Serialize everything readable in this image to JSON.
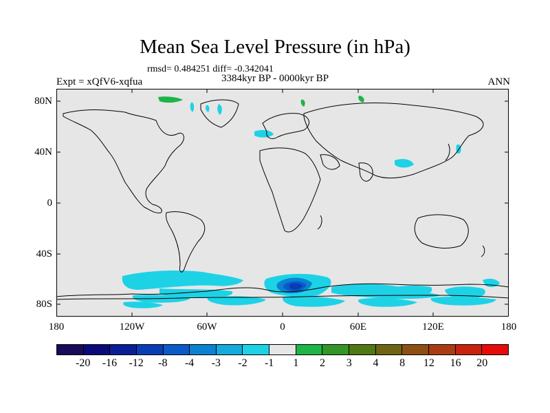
{
  "title": "Mean Sea Level Pressure (in hPa)",
  "stats": "rmsd= 0.484251  diff= -0.342041",
  "period": "3384kyr BP - 0000kyr BP",
  "experiment": "Expt = xQfV6-xqfua",
  "season": "ANN",
  "lat_labels": [
    "80N",
    "40N",
    "0",
    "40S",
    "80S"
  ],
  "lon_labels": [
    "180",
    "120W",
    "60W",
    "0",
    "60E",
    "120E",
    "180"
  ],
  "colorbar": {
    "colors": [
      "#1a0a5a",
      "#0a0a7a",
      "#0a1e96",
      "#0a3cb4",
      "#0a5ac8",
      "#0a82d2",
      "#14aadc",
      "#1ed2e6",
      "#e6e6e6",
      "#1eb446",
      "#329628",
      "#507814",
      "#6e6414",
      "#8c5014",
      "#aa3c14",
      "#c8230f",
      "#e60a0a"
    ],
    "labels": [
      "-20",
      "-16",
      "-12",
      "-8",
      "-4",
      "-3",
      "-2",
      "-1",
      "1",
      "2",
      "3",
      "4",
      "8",
      "12",
      "16",
      "20"
    ]
  },
  "anomaly_colors": {
    "light_blue": "#1ed2e6",
    "mid_blue": "#0a82d2",
    "dark_blue": "#0a3cb4",
    "deep_blue": "#0a1e96",
    "green": "#1eb446",
    "dark_green": "#329628",
    "background": "#e6e6e6"
  }
}
